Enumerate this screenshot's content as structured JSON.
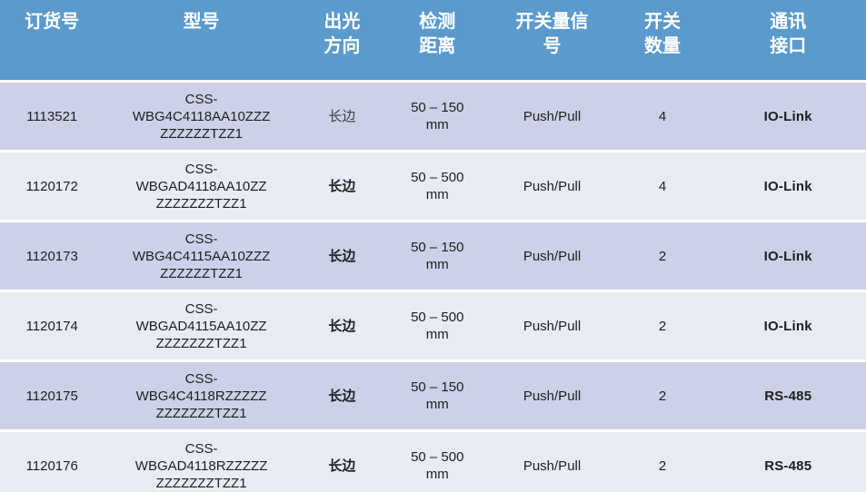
{
  "colors": {
    "header_bg": "#5b9acd",
    "row_odd": "#ccd1e8",
    "row_even": "#e9ebf4",
    "header_text": "#ffffff",
    "body_text": "#1f1f1f"
  },
  "table": {
    "columns": [
      "订货号",
      "型号",
      "出光\n方向",
      "检测\n距离",
      "开关量信\n号",
      "开关\n数量",
      "通讯\n接口"
    ],
    "rows": [
      {
        "order_no": "1113521",
        "model_lines": [
          "CSS-",
          "WBG4C4118AA10ZZZ",
          "ZZZZZZTZZ1"
        ],
        "direction": "长边",
        "direction_serif": true,
        "distance_lines": [
          "50 – 150",
          "mm"
        ],
        "signal": "Push/Pull",
        "count": "4",
        "interface": "IO-Link"
      },
      {
        "order_no": "1120172",
        "model_lines": [
          "CSS-",
          "WBGAD4118AA10ZZ",
          "ZZZZZZZTZZ1"
        ],
        "direction": "长边",
        "direction_serif": false,
        "distance_lines": [
          "50 – 500",
          "mm"
        ],
        "signal": "Push/Pull",
        "count": "4",
        "interface": "IO-Link"
      },
      {
        "order_no": "1120173",
        "model_lines": [
          "CSS-",
          "WBG4C4115AA10ZZZ",
          "ZZZZZZTZZ1"
        ],
        "direction": "长边",
        "direction_serif": false,
        "distance_lines": [
          "50 – 150",
          "mm"
        ],
        "signal": "Push/Pull",
        "count": "2",
        "interface": "IO-Link"
      },
      {
        "order_no": "1120174",
        "model_lines": [
          "CSS-",
          "WBGAD4115AA10ZZ",
          "ZZZZZZZTZZ1"
        ],
        "direction": "长边",
        "direction_serif": false,
        "distance_lines": [
          "50 – 500",
          "mm"
        ],
        "signal": "Push/Pull",
        "count": "2",
        "interface": "IO-Link"
      },
      {
        "order_no": "1120175",
        "model_lines": [
          "CSS-",
          "WBG4C4118RZZZZZ",
          "ZZZZZZZTZZ1"
        ],
        "direction": "长边",
        "direction_serif": false,
        "distance_lines": [
          "50 – 150",
          "mm"
        ],
        "signal": "Push/Pull",
        "count": "2",
        "interface": "RS-485"
      },
      {
        "order_no": "1120176",
        "model_lines": [
          "CSS-",
          "WBGAD4118RZZZZZ",
          "ZZZZZZZTZZ1"
        ],
        "direction": "长边",
        "direction_serif": false,
        "distance_lines": [
          "50 – 500",
          "mm"
        ],
        "signal": "Push/Pull",
        "count": "2",
        "interface": "RS-485"
      }
    ]
  }
}
